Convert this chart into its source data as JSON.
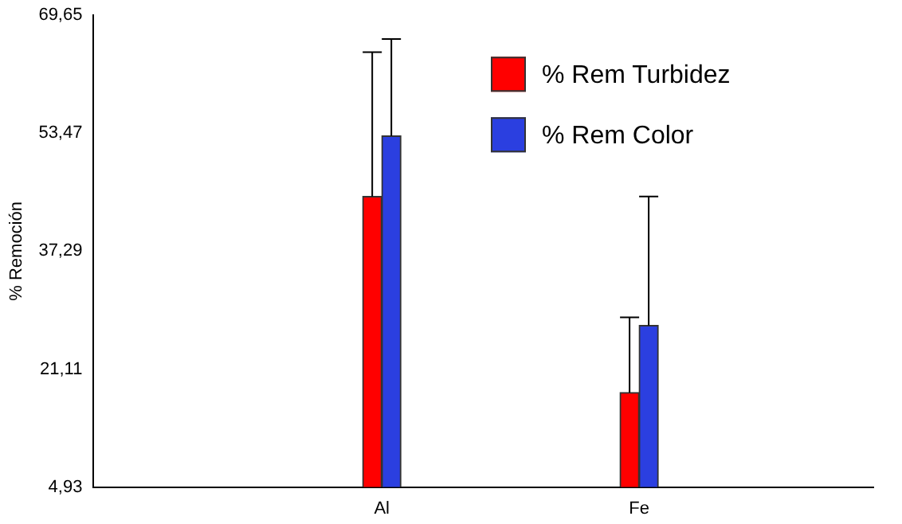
{
  "chart_data": {
    "type": "bar",
    "ylabel": "% Remoción",
    "categories": [
      "Al",
      "Fe"
    ],
    "series": [
      {
        "name": "% Rem Turbidez",
        "color": "#ff0000",
        "values": [
          44.8,
          17.9
        ],
        "errors": [
          [
            44.8,
            64.6
          ],
          [
            17.9,
            28.2
          ]
        ]
      },
      {
        "name": "% Rem Color",
        "color": "#2b3fe0",
        "values": [
          53.1,
          27.1
        ],
        "errors": [
          [
            53.1,
            66.4
          ],
          [
            27.1,
            44.8
          ]
        ]
      }
    ],
    "ylim": [
      4.93,
      69.65
    ],
    "yticks": [
      {
        "value": 4.93,
        "label": "4,93"
      },
      {
        "value": 21.11,
        "label": "21,11"
      },
      {
        "value": 37.29,
        "label": "37,29"
      },
      {
        "value": 53.47,
        "label": "53,47"
      },
      {
        "value": 69.65,
        "label": "69,65"
      }
    ],
    "grid": false,
    "legend": "top right"
  }
}
